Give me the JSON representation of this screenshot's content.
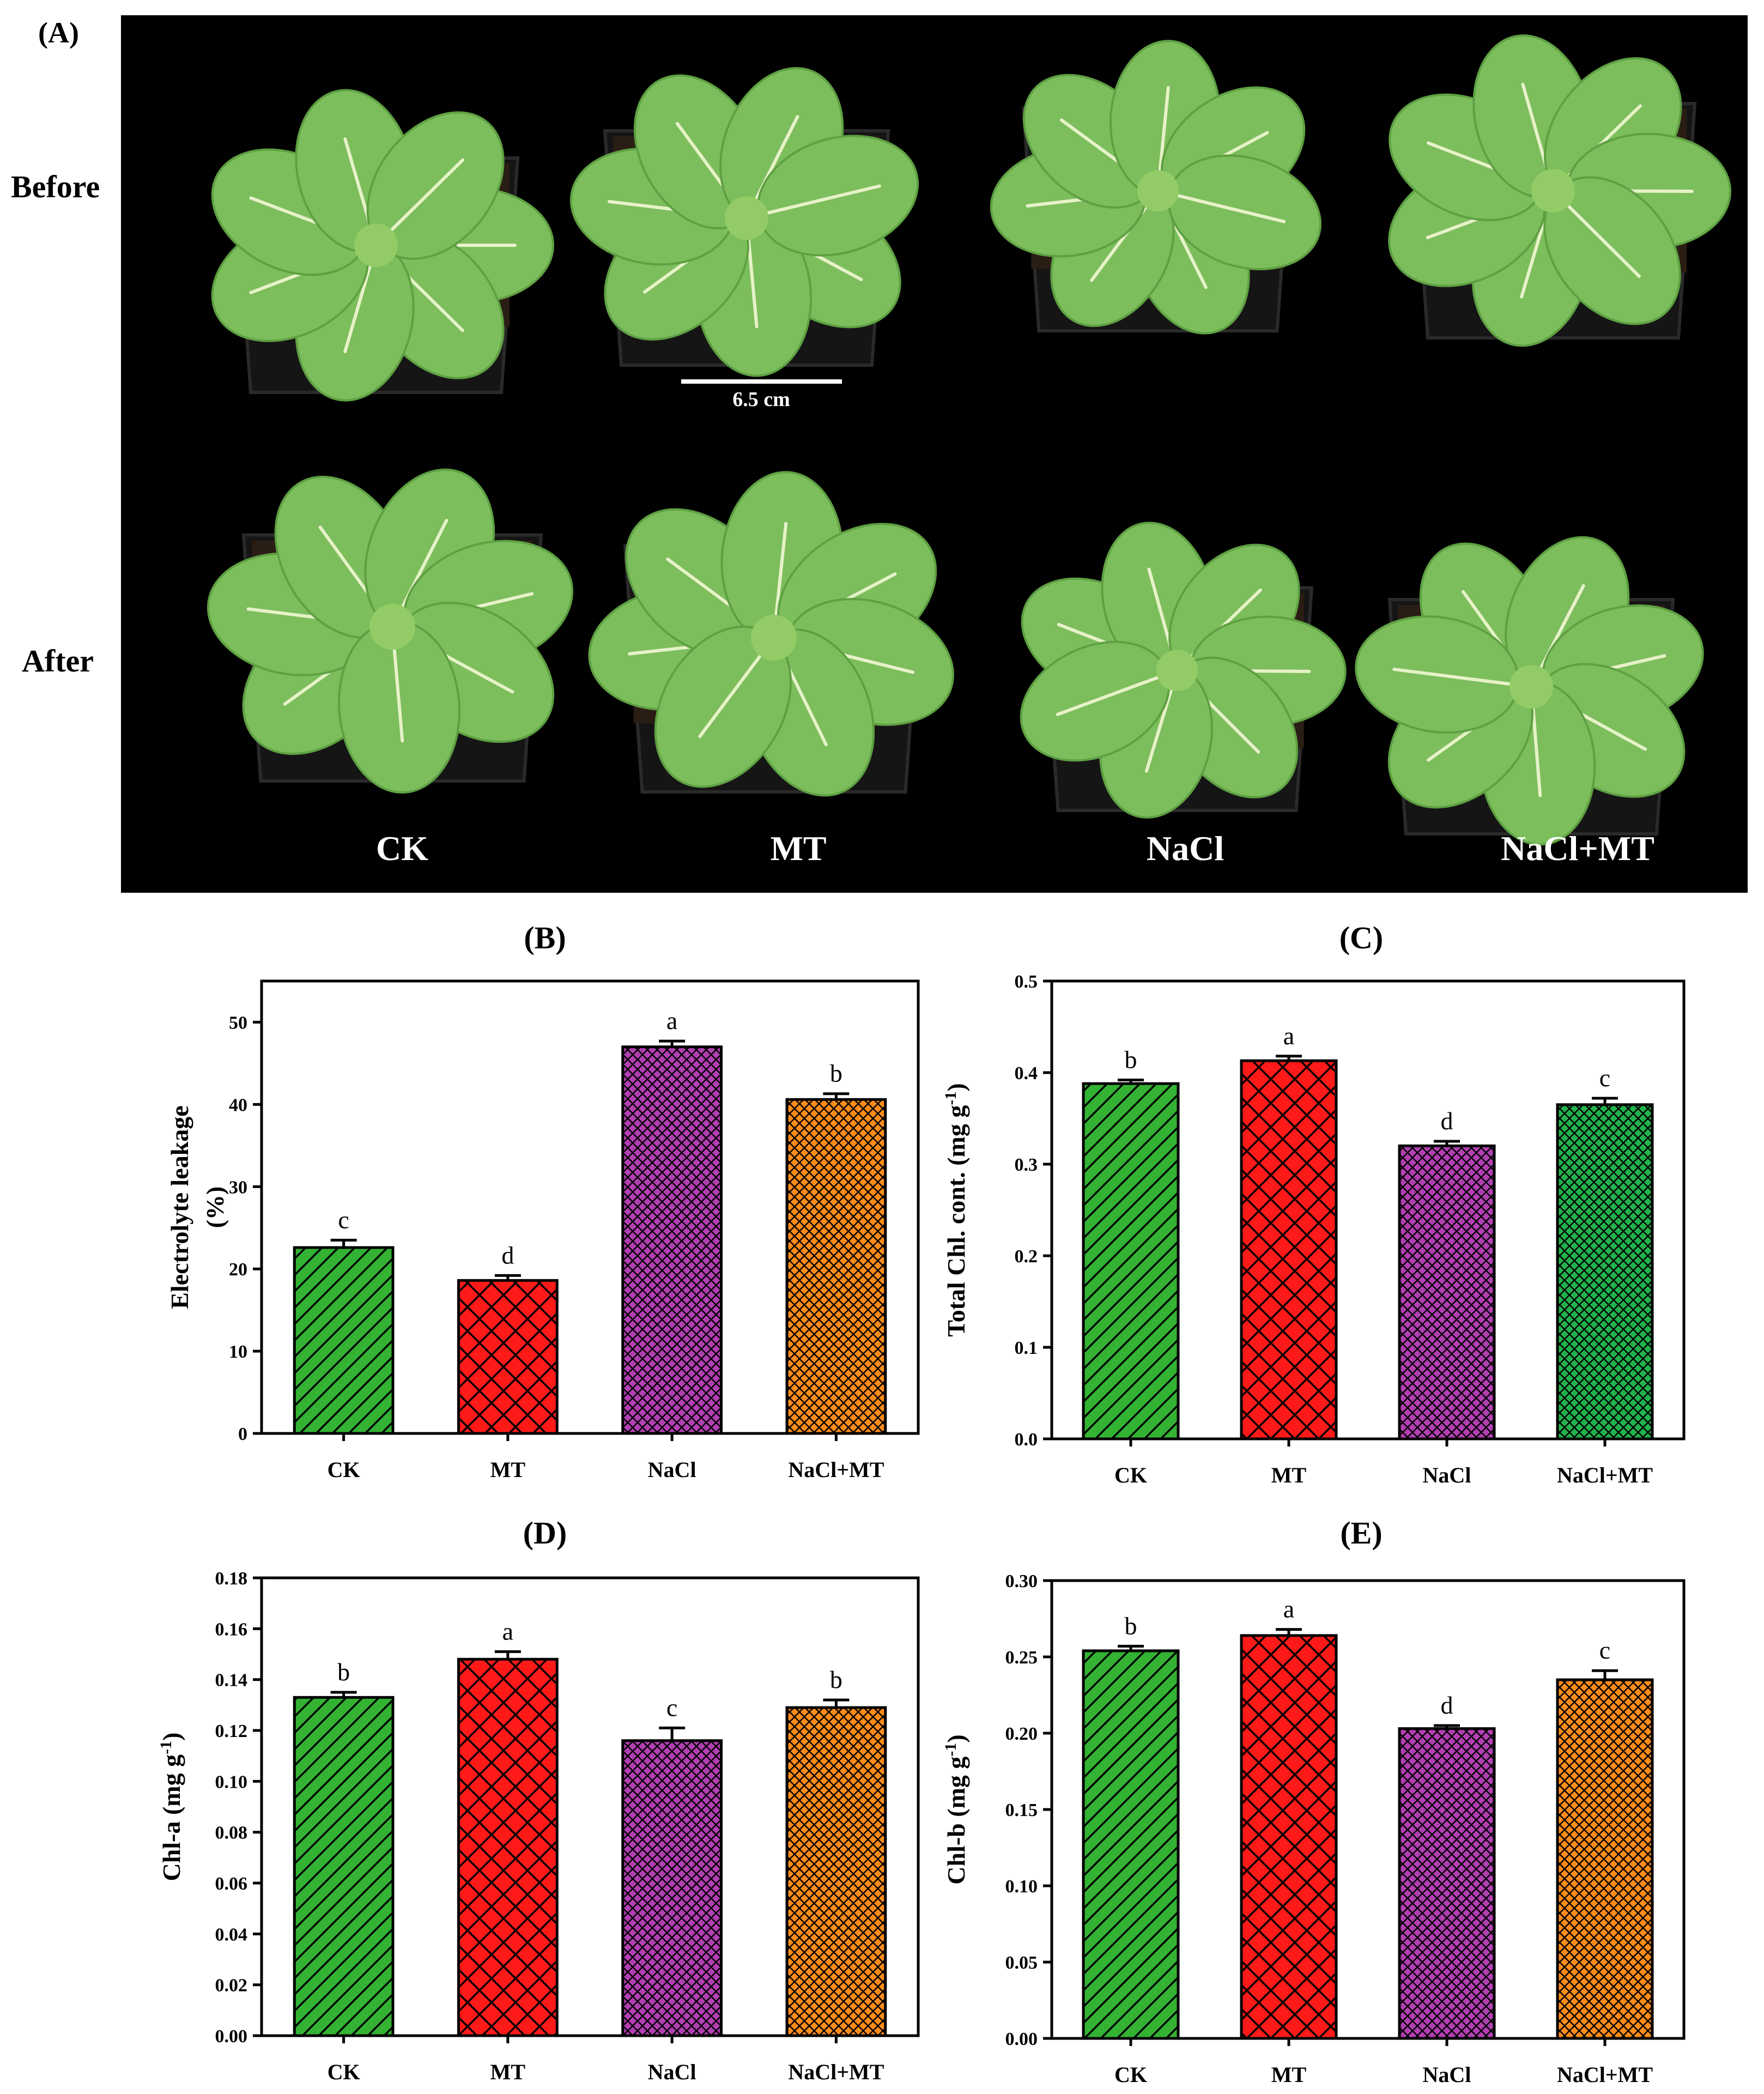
{
  "colors": {
    "CK": "#33b233",
    "MT": "#ff1a1a",
    "NaCl": "#b23fb2",
    "NaCl+MT": "#ff8c1a",
    "NaCl+MT_C": "#22b24c",
    "photo_bg": "#000000",
    "leaf": "#7cbd5c",
    "soil": "#2a1d14",
    "pot": "#151515"
  },
  "photo_panel": {
    "label": "(A)",
    "rows": [
      {
        "name": "before",
        "label": "Before"
      },
      {
        "name": "after",
        "label": "After"
      }
    ],
    "treatments": [
      "CK",
      "MT",
      "NaCl",
      "NaCl+MT"
    ],
    "scale_bar_label": "6.5 cm"
  },
  "chart_data": [
    {
      "id": "B",
      "type": "bar",
      "title": "(B)",
      "ylabel_line1": "Electrolyte leakage",
      "ylabel_line2": "(%)",
      "categories": [
        "CK",
        "MT",
        "NaCl",
        "NaCl+MT"
      ],
      "values": [
        22.6,
        18.6,
        47.0,
        40.6
      ],
      "errors": [
        0.9,
        0.6,
        0.7,
        0.7
      ],
      "letters": [
        "c",
        "d",
        "a",
        "b"
      ],
      "ylim": [
        0,
        55
      ],
      "yticks": [
        0,
        10,
        20,
        30,
        40,
        50
      ],
      "ytick_labels": [
        "0",
        "10",
        "20",
        "30",
        "40",
        "50"
      ],
      "patterns": [
        "diag",
        "cross",
        "crossfine",
        "crossfine"
      ],
      "fills": [
        "CK",
        "MT",
        "NaCl",
        "NaCl+MT"
      ]
    },
    {
      "id": "C",
      "type": "bar",
      "title": "(C)",
      "ylabel_line1": "Total Chl. cont.  (mg g",
      "ylabel_sup": "-1",
      "ylabel_tail": ")",
      "categories": [
        "CK",
        "MT",
        "NaCl",
        "NaCl+MT"
      ],
      "values": [
        0.388,
        0.413,
        0.32,
        0.365
      ],
      "errors": [
        0.004,
        0.005,
        0.005,
        0.007
      ],
      "letters": [
        "b",
        "a",
        "d",
        "c"
      ],
      "ylim": [
        0,
        0.5
      ],
      "yticks": [
        0,
        0.1,
        0.2,
        0.3,
        0.4,
        0.5
      ],
      "ytick_labels": [
        "0.0",
        "0.1",
        "0.2",
        "0.3",
        "0.4",
        "0.5"
      ],
      "patterns": [
        "diag",
        "cross",
        "crossfine",
        "crossfine"
      ],
      "fills": [
        "CK",
        "MT",
        "NaCl",
        "NaCl+MT_C"
      ]
    },
    {
      "id": "D",
      "type": "bar",
      "title": "(D)",
      "ylabel_line1": "Chl-a  (mg g",
      "ylabel_sup": "-1",
      "ylabel_tail": ")",
      "categories": [
        "CK",
        "MT",
        "NaCl",
        "NaCl+MT"
      ],
      "values": [
        0.133,
        0.148,
        0.116,
        0.129
      ],
      "errors": [
        0.002,
        0.003,
        0.005,
        0.003
      ],
      "letters": [
        "b",
        "a",
        "c",
        "b"
      ],
      "ylim": [
        0,
        0.18
      ],
      "yticks": [
        0,
        0.02,
        0.04,
        0.06,
        0.08,
        0.1,
        0.12,
        0.14,
        0.16,
        0.18
      ],
      "ytick_labels": [
        "0.00",
        "0.02",
        "0.04",
        "0.06",
        "0.08",
        "0.10",
        "0.12",
        "0.14",
        "0.16",
        "0.18"
      ],
      "patterns": [
        "diag",
        "cross",
        "crossfine",
        "crossfine"
      ],
      "fills": [
        "CK",
        "MT",
        "NaCl",
        "NaCl+MT"
      ]
    },
    {
      "id": "E",
      "type": "bar",
      "title": "(E)",
      "ylabel_line1": "Chl-b  (mg g",
      "ylabel_sup": "-1",
      "ylabel_tail": ")",
      "categories": [
        "CK",
        "MT",
        "NaCl",
        "NaCl+MT"
      ],
      "values": [
        0.254,
        0.264,
        0.203,
        0.235
      ],
      "errors": [
        0.003,
        0.004,
        0.002,
        0.006
      ],
      "letters": [
        "b",
        "a",
        "d",
        "c"
      ],
      "ylim": [
        0,
        0.3
      ],
      "yticks": [
        0,
        0.05,
        0.1,
        0.15,
        0.2,
        0.25,
        0.3
      ],
      "ytick_labels": [
        "0.00",
        "0.05",
        "0.10",
        "0.15",
        "0.20",
        "0.25",
        "0.30"
      ],
      "patterns": [
        "diag",
        "cross",
        "crossfine",
        "crossfine"
      ],
      "fills": [
        "CK",
        "MT",
        "NaCl",
        "NaCl+MT"
      ]
    }
  ]
}
